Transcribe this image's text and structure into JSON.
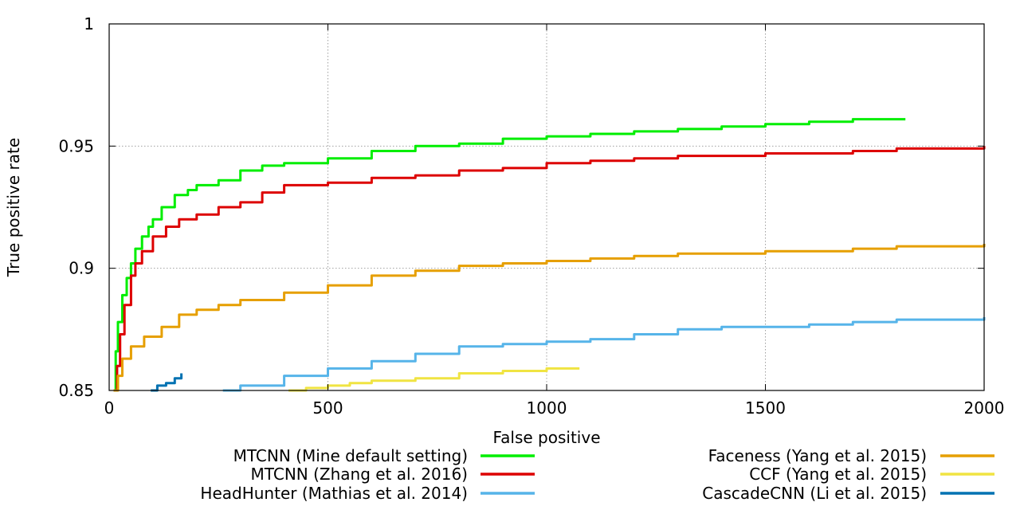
{
  "chart_data": {
    "type": "line",
    "title": "",
    "xlabel": "False positive",
    "ylabel": "True positive rate",
    "xlim": [
      0,
      2000
    ],
    "ylim": [
      0.85,
      1
    ],
    "xticks": [
      0,
      500,
      1000,
      1500,
      2000
    ],
    "xtick_labels": [
      "0",
      "500",
      "1000",
      "1500",
      "2000"
    ],
    "yticks": [
      0.85,
      0.9,
      0.95,
      1
    ],
    "ytick_labels": [
      "0.85",
      "0.9",
      "0.95",
      "1"
    ],
    "grid": true,
    "legend_position": "bottom",
    "series": [
      {
        "name": "MTCNN (Mine default setting)",
        "color": "#00ee00",
        "points": [
          [
            10,
            0.85
          ],
          [
            15,
            0.866
          ],
          [
            20,
            0.878
          ],
          [
            30,
            0.889
          ],
          [
            40,
            0.896
          ],
          [
            50,
            0.902
          ],
          [
            60,
            0.908
          ],
          [
            75,
            0.913
          ],
          [
            90,
            0.917
          ],
          [
            100,
            0.92
          ],
          [
            120,
            0.925
          ],
          [
            150,
            0.93
          ],
          [
            180,
            0.932
          ],
          [
            200,
            0.934
          ],
          [
            250,
            0.936
          ],
          [
            300,
            0.94
          ],
          [
            350,
            0.942
          ],
          [
            400,
            0.943
          ],
          [
            500,
            0.945
          ],
          [
            600,
            0.948
          ],
          [
            700,
            0.95
          ],
          [
            800,
            0.951
          ],
          [
            900,
            0.953
          ],
          [
            1000,
            0.954
          ],
          [
            1100,
            0.955
          ],
          [
            1200,
            0.956
          ],
          [
            1300,
            0.957
          ],
          [
            1400,
            0.958
          ],
          [
            1500,
            0.959
          ],
          [
            1600,
            0.96
          ],
          [
            1700,
            0.961
          ],
          [
            1820,
            0.961
          ]
        ]
      },
      {
        "name": "MTCNN (Zhang et al. 2016)",
        "color": "#dd0000",
        "points": [
          [
            10,
            0.85
          ],
          [
            18,
            0.86
          ],
          [
            25,
            0.873
          ],
          [
            35,
            0.885
          ],
          [
            50,
            0.897
          ],
          [
            60,
            0.902
          ],
          [
            75,
            0.907
          ],
          [
            100,
            0.913
          ],
          [
            130,
            0.917
          ],
          [
            160,
            0.92
          ],
          [
            200,
            0.922
          ],
          [
            250,
            0.925
          ],
          [
            300,
            0.927
          ],
          [
            350,
            0.931
          ],
          [
            400,
            0.934
          ],
          [
            500,
            0.935
          ],
          [
            600,
            0.937
          ],
          [
            700,
            0.938
          ],
          [
            800,
            0.94
          ],
          [
            900,
            0.941
          ],
          [
            1000,
            0.943
          ],
          [
            1100,
            0.944
          ],
          [
            1200,
            0.945
          ],
          [
            1300,
            0.946
          ],
          [
            1400,
            0.946
          ],
          [
            1500,
            0.947
          ],
          [
            1600,
            0.947
          ],
          [
            1700,
            0.948
          ],
          [
            1800,
            0.949
          ],
          [
            1900,
            0.949
          ],
          [
            2000,
            0.95
          ]
        ]
      },
      {
        "name": "HeadHunter (Mathias et al. 2014)",
        "color": "#56b4e9",
        "points": [
          [
            260,
            0.85
          ],
          [
            300,
            0.852
          ],
          [
            400,
            0.856
          ],
          [
            500,
            0.859
          ],
          [
            600,
            0.862
          ],
          [
            700,
            0.865
          ],
          [
            800,
            0.868
          ],
          [
            900,
            0.869
          ],
          [
            1000,
            0.87
          ],
          [
            1100,
            0.871
          ],
          [
            1200,
            0.873
          ],
          [
            1300,
            0.875
          ],
          [
            1400,
            0.876
          ],
          [
            1500,
            0.876
          ],
          [
            1600,
            0.877
          ],
          [
            1700,
            0.878
          ],
          [
            1800,
            0.879
          ],
          [
            1900,
            0.879
          ],
          [
            2000,
            0.88
          ]
        ]
      },
      {
        "name": "Faceness (Yang et al. 2015)",
        "color": "#e69f00",
        "points": [
          [
            10,
            0.85
          ],
          [
            20,
            0.856
          ],
          [
            30,
            0.863
          ],
          [
            50,
            0.868
          ],
          [
            80,
            0.872
          ],
          [
            120,
            0.876
          ],
          [
            160,
            0.881
          ],
          [
            200,
            0.883
          ],
          [
            250,
            0.885
          ],
          [
            300,
            0.887
          ],
          [
            400,
            0.89
          ],
          [
            500,
            0.893
          ],
          [
            600,
            0.897
          ],
          [
            700,
            0.899
          ],
          [
            800,
            0.901
          ],
          [
            900,
            0.902
          ],
          [
            1000,
            0.903
          ],
          [
            1100,
            0.904
          ],
          [
            1200,
            0.905
          ],
          [
            1300,
            0.906
          ],
          [
            1400,
            0.906
          ],
          [
            1500,
            0.907
          ],
          [
            1600,
            0.907
          ],
          [
            1700,
            0.908
          ],
          [
            1800,
            0.909
          ],
          [
            1900,
            0.909
          ],
          [
            2000,
            0.91
          ]
        ]
      },
      {
        "name": "CCF (Yang et al. 2015)",
        "color": "#f0e442",
        "points": [
          [
            410,
            0.85
          ],
          [
            450,
            0.851
          ],
          [
            500,
            0.852
          ],
          [
            550,
            0.853
          ],
          [
            600,
            0.854
          ],
          [
            700,
            0.855
          ],
          [
            800,
            0.857
          ],
          [
            900,
            0.858
          ],
          [
            1000,
            0.859
          ],
          [
            1075,
            0.859
          ]
        ]
      },
      {
        "name": "CascadeCNN (Li et al. 2015)",
        "color": "#0072b2",
        "points": [
          [
            95,
            0.85
          ],
          [
            110,
            0.852
          ],
          [
            130,
            0.853
          ],
          [
            150,
            0.855
          ],
          [
            165,
            0.857
          ]
        ]
      }
    ]
  }
}
